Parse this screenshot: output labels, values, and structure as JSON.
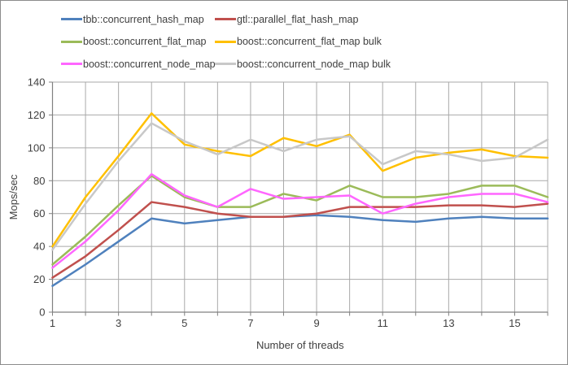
{
  "chart_data": {
    "type": "line",
    "xlabel": "Number of threads",
    "ylabel": "Mops/sec",
    "x": [
      1,
      2,
      3,
      4,
      5,
      6,
      7,
      8,
      9,
      10,
      11,
      12,
      13,
      14,
      15,
      16
    ],
    "x_tick_labels": [
      "1",
      "3",
      "5",
      "7",
      "9",
      "11",
      "13",
      "15"
    ],
    "x_label_positions": [
      1,
      3,
      5,
      7,
      9,
      11,
      13,
      15
    ],
    "y_ticks": [
      0,
      20,
      40,
      60,
      80,
      100,
      120,
      140
    ],
    "ylim": [
      0,
      140
    ],
    "xlim": [
      1,
      16
    ],
    "grid": true,
    "legend_position": "top",
    "series": [
      {
        "name": "tbb::concurrent_hash_map",
        "color": "#4F81BD",
        "values": [
          16,
          29,
          43,
          57,
          54,
          56,
          58,
          58,
          59,
          58,
          56,
          55,
          57,
          58,
          57,
          57
        ]
      },
      {
        "name": "gtl::parallel_flat_hash_map",
        "color": "#C0504D",
        "values": [
          21,
          34,
          50,
          67,
          64,
          60,
          58,
          58,
          60,
          64,
          64,
          64,
          65,
          65,
          64,
          66
        ]
      },
      {
        "name": "boost::concurrent_flat_map",
        "color": "#9BBB59",
        "values": [
          29,
          46,
          65,
          83,
          70,
          64,
          64,
          72,
          68,
          77,
          70,
          70,
          72,
          77,
          77,
          70
        ]
      },
      {
        "name": "boost::concurrent_flat_map bulk",
        "color": "#FFC000",
        "values": [
          40,
          70,
          95,
          121,
          102,
          98,
          95,
          106,
          101,
          108,
          86,
          94,
          97,
          99,
          95,
          94
        ]
      },
      {
        "name": "boost::concurrent_node_map",
        "color": "#FF66FF",
        "values": [
          27,
          43,
          62,
          84,
          71,
          64,
          75,
          69,
          70,
          71,
          60,
          66,
          70,
          72,
          72,
          67
        ]
      },
      {
        "name": "boost::concurrent_node_map bulk",
        "color": "#C8C8C8",
        "values": [
          38,
          66,
          92,
          115,
          104,
          96,
          105,
          98,
          105,
          107,
          90,
          98,
          96,
          92,
          94,
          105
        ]
      }
    ]
  },
  "styles": {
    "gridline_color": "#A9A9A9",
    "axis_color": "#808080",
    "text_color": "#404040",
    "frame_border_color": "#8C8C8C"
  }
}
